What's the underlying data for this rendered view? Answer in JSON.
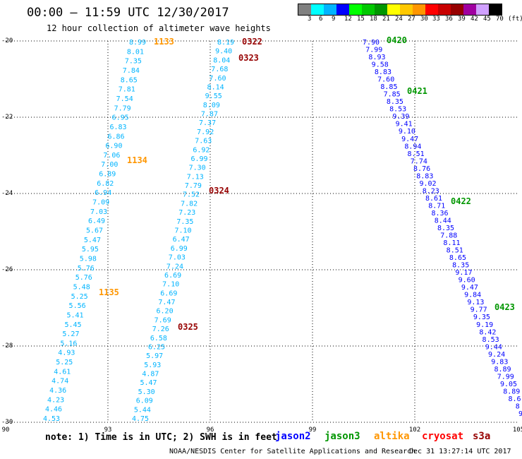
{
  "header": {
    "title": "00:00 — 11:59 UTC 12/30/2017",
    "subtitle": "12 hour collection of altimeter wave heights"
  },
  "legend": {
    "colors": [
      "#808080",
      "#00ffff",
      "#00b4ff",
      "#0000ff",
      "#00ff00",
      "#00c800",
      "#009600",
      "#ffff00",
      "#ffc800",
      "#ff9600",
      "#ff0000",
      "#c80000",
      "#960000",
      "#a000a0",
      "#d0a0ff",
      "#000000"
    ],
    "labels": [
      "3",
      "6",
      "9",
      "12",
      "15",
      "18",
      "21",
      "24",
      "27",
      "30",
      "33",
      "36",
      "39",
      "42",
      "45",
      "70",
      "(ft)"
    ]
  },
  "axes": {
    "lon": [
      "90",
      "93",
      "96",
      "99",
      "102",
      "105"
    ],
    "lat": [
      "-20",
      "-22",
      "-24",
      "-26",
      "-28",
      "-30"
    ]
  },
  "tracks": [
    {
      "color": "#00b4ff",
      "x0": 195,
      "y0": 59,
      "x1": 73,
      "y1": 592,
      "values": [
        "8.99",
        "8.01",
        "7.35",
        "7.84",
        "8.65",
        "7.81",
        "7.54",
        "7.79",
        "6.95",
        "6.83",
        "6.86",
        "6.90",
        "7.06",
        "7.00",
        "6.89",
        "6.82",
        "6.94",
        "7.09",
        "7.03",
        "6.49",
        "5.67",
        "5.47",
        "5.95",
        "5.98",
        "5.76",
        "5.76",
        "5.48",
        "5.25",
        "5.56",
        "5.41",
        "5.45",
        "5.27",
        "5.16",
        "4.93",
        "5.25",
        "4.61",
        "4.74",
        "4.36",
        "4.23",
        "4.46",
        "4.53"
      ]
    },
    {
      "color": "#00b4ff",
      "x0": 320,
      "y0": 59,
      "x1": 199,
      "y1": 592,
      "values": [
        "8.19",
        "9.40",
        "8.04",
        "7.68",
        "7.60",
        "8.14",
        "9.55",
        "8.09",
        "7.87",
        "7.37",
        "7.92",
        "7.63",
        "6.92",
        "6.99",
        "7.30",
        "7.13",
        "7.79",
        "7.52",
        "7.82",
        "7.23",
        "7.35",
        "7.10",
        "6.47",
        "6.99",
        "7.03",
        "7.24",
        "6.69",
        "7.10",
        "6.69",
        "7.47",
        "6.20",
        "7.69",
        "7.26",
        "6.58",
        "6.25",
        "5.97",
        "5.93",
        "4.87",
        "5.47",
        "5.30",
        "6.09",
        "5.44",
        "4.75"
      ]
    },
    {
      "color": "#0000ff",
      "x0": 526,
      "y0": 59,
      "x1": 738,
      "y1": 585,
      "values": [
        "7.90",
        "7.99",
        "8.93",
        "9.58",
        "8.83",
        "7.60",
        "8.85",
        "7.85",
        "8.35",
        "8.53",
        "9.39",
        "9.41",
        "9.10",
        "9.47",
        "8.94",
        "8.51",
        "7.74",
        "8.76",
        "8.83",
        "9.02",
        "8.23",
        "8.61",
        "8.71",
        "8.36",
        "8.44",
        "8.35",
        "7.88",
        "8.11",
        "8.51",
        "8.65",
        "8.35",
        "9.17",
        "9.60",
        "9.47",
        "9.84",
        "9.13",
        "9.77",
        "9.35",
        "9.19",
        "8.42",
        "8.53",
        "9.44",
        "9.24",
        "9.83",
        "8.89",
        "7.99",
        "9.05",
        "8.89",
        "8.6",
        "8",
        "9"
      ]
    }
  ],
  "time_labels": [
    {
      "text": "1133",
      "color": "#ff9600"
    },
    {
      "text": "1134",
      "color": "#ff9600"
    },
    {
      "text": "1135",
      "color": "#ff9600"
    },
    {
      "text": "0322",
      "color": "#960000"
    },
    {
      "text": "0323",
      "color": "#960000"
    },
    {
      "text": "0324",
      "color": "#960000"
    },
    {
      "text": "0325",
      "color": "#960000"
    },
    {
      "text": "0420",
      "color": "#009600"
    },
    {
      "text": "0421",
      "color": "#009600"
    },
    {
      "text": "0422",
      "color": "#009600"
    },
    {
      "text": "0423",
      "color": "#009600"
    }
  ],
  "footer": {
    "note": "note: 1) Time is in UTC; 2) SWH is in feet",
    "sats": [
      {
        "name": "jason2",
        "color": "#0000ff"
      },
      {
        "name": "jason3",
        "color": "#009600"
      },
      {
        "name": "altika",
        "color": "#ff9600"
      },
      {
        "name": "cryosat",
        "color": "#ff0000"
      },
      {
        "name": "s3a",
        "color": "#960000"
      }
    ],
    "credit": "NOAA/NESDIS Center for Satellite Applications and Research",
    "stamp": "Dec 31 13:27:14 UTC 2017"
  }
}
